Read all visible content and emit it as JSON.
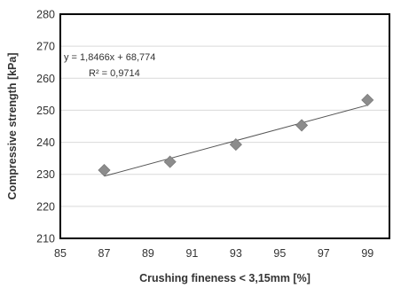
{
  "chart_data": {
    "type": "scatter",
    "xlabel": "Crushing fineness < 3,15mm [%]",
    "ylabel": "Compressive strength [kPa]",
    "xlim": [
      85,
      100
    ],
    "ylim": [
      210,
      280
    ],
    "x_ticks": [
      "85",
      "87",
      "89",
      "91",
      "93",
      "95",
      "97",
      "99"
    ],
    "y_ticks": [
      "210",
      "220",
      "230",
      "240",
      "250",
      "260",
      "270",
      "280"
    ],
    "grid": "horizontal",
    "series": [
      {
        "marker": "diamond",
        "color": "#8c8c8c",
        "x": [
          87,
          90,
          93,
          96,
          99
        ],
        "y": [
          231.3,
          233.9,
          239.3,
          245.3,
          253.2
        ]
      }
    ],
    "trendline": {
      "type": "linear",
      "x_range": [
        87,
        99
      ],
      "slope": 1.8466,
      "intercept": 68.774,
      "color": "#555555",
      "equation_label": "y = 1,8466x + 68,774",
      "r2_label": "R² = 0,9714"
    },
    "colors": {
      "grid": "#d9d9d9",
      "frame": "#000000",
      "marker": "#8c8c8c"
    }
  }
}
